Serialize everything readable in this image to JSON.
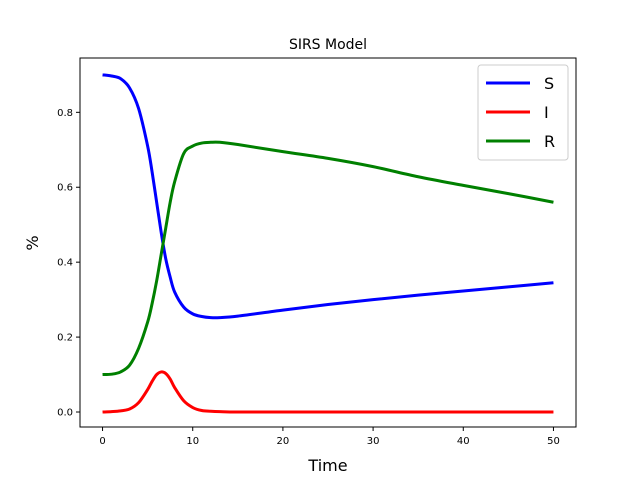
{
  "chart_data": {
    "type": "line",
    "title": "SIRS Model",
    "xlabel": "Time",
    "ylabel": "%",
    "xlim": [
      -2.5,
      52.5
    ],
    "ylim": [
      -0.04,
      0.945
    ],
    "xticks": [
      0,
      10,
      20,
      30,
      40,
      50
    ],
    "yticks": [
      0.0,
      0.2,
      0.4,
      0.6,
      0.8
    ],
    "xtick_labels": [
      "0",
      "10",
      "20",
      "30",
      "40",
      "50"
    ],
    "ytick_labels": [
      "0.0",
      "0.2",
      "0.4",
      "0.6",
      "0.8"
    ],
    "grid": false,
    "legend": "top-right",
    "x": [
      0,
      1,
      2,
      3,
      4,
      5,
      5.5,
      6,
      6.5,
      7,
      7.5,
      8,
      9,
      10,
      11,
      12,
      13,
      15,
      20,
      25,
      30,
      35,
      40,
      45,
      50
    ],
    "series": [
      {
        "name": "S",
        "color": "#0000ff",
        "values": [
          0.9,
          0.897,
          0.89,
          0.865,
          0.81,
          0.71,
          0.64,
          0.56,
          0.48,
          0.41,
          0.36,
          0.32,
          0.28,
          0.262,
          0.255,
          0.252,
          0.252,
          0.256,
          0.272,
          0.287,
          0.3,
          0.312,
          0.323,
          0.334,
          0.345
        ]
      },
      {
        "name": "I",
        "color": "#ff0000",
        "values": [
          0.0,
          0.001,
          0.003,
          0.008,
          0.025,
          0.06,
          0.082,
          0.1,
          0.107,
          0.103,
          0.088,
          0.065,
          0.03,
          0.012,
          0.004,
          0.002,
          0.001,
          0.0,
          0.0,
          0.0,
          0.0,
          0.0,
          0.0,
          0.0,
          0.0
        ]
      },
      {
        "name": "R",
        "color": "#008000",
        "values": [
          0.1,
          0.101,
          0.107,
          0.125,
          0.17,
          0.24,
          0.29,
          0.35,
          0.42,
          0.49,
          0.56,
          0.615,
          0.69,
          0.71,
          0.718,
          0.72,
          0.72,
          0.714,
          0.695,
          0.677,
          0.655,
          0.628,
          0.605,
          0.583,
          0.56
        ]
      }
    ]
  }
}
